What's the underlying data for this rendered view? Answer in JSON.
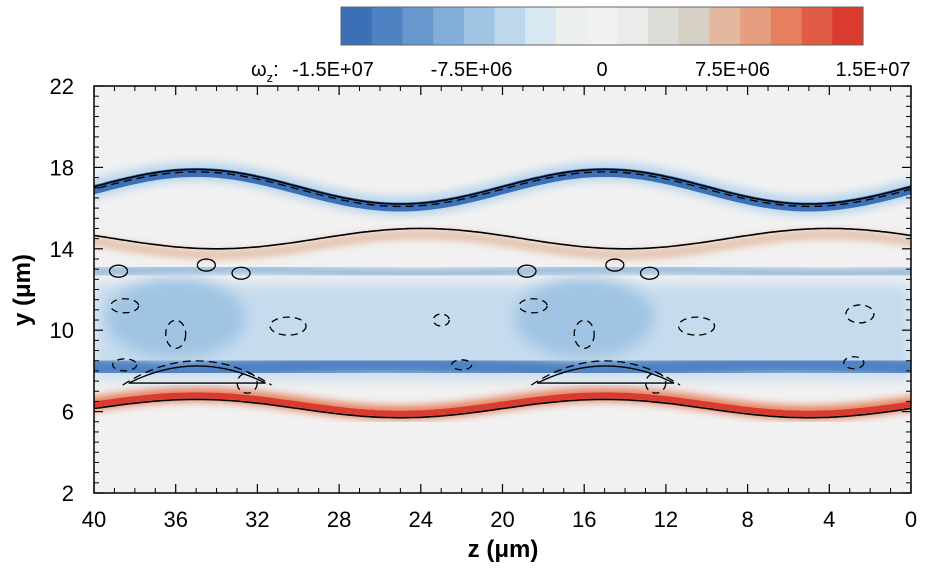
{
  "chart_data": {
    "type": "heatmap",
    "quantity": "vorticity",
    "xlabel": "z (μm)",
    "ylabel": "y (μm)",
    "xlim": [
      40,
      0
    ],
    "ylim": [
      2,
      22
    ],
    "x_ticks": [
      40,
      36,
      32,
      28,
      24,
      20,
      16,
      12,
      8,
      4,
      0
    ],
    "y_ticks": [
      2,
      6,
      10,
      14,
      18,
      22
    ],
    "x_tick_labels": [
      "40",
      "36",
      "32",
      "28",
      "24",
      "20",
      "16",
      "12",
      "8",
      "4",
      "0"
    ],
    "y_tick_labels": [
      "2",
      "6",
      "10",
      "14",
      "18",
      "22"
    ],
    "x_reversed": true,
    "colorbar": {
      "label_symbol": "ω",
      "label_subscript": "z",
      "label_suffix": ":",
      "min": -15000000,
      "max": 15000000,
      "tick_values": [
        -15000000,
        -7500000,
        0,
        7500000,
        15000000
      ],
      "tick_labels": [
        "-1.5E+07",
        "-7.5E+06",
        "0",
        "7.5E+06",
        "1.5E+07"
      ],
      "colors": [
        "#3b6fb6",
        "#4f82c2",
        "#6797cd",
        "#83aed8",
        "#a0c4e3",
        "#bdd7ec",
        "#d8e8f2",
        "#ebf0ec",
        "#f1f1f1",
        "#ebebea",
        "#dedcd7",
        "#d6cfc4",
        "#e3b89e",
        "#e79d80",
        "#e6805f",
        "#e05c45",
        "#d93b2e"
      ]
    },
    "interfaces": {
      "period": 20,
      "upper_solid": {
        "mean": 17.05,
        "amplitude": 0.85,
        "peak_z": 35
      },
      "middle_solid": {
        "mean": 14.5,
        "amplitude": 0.5,
        "peak_z": 24
      },
      "lower_solid": {
        "mean": 6.15,
        "amplitude": 0.45,
        "peak_z": 35
      }
    }
  }
}
